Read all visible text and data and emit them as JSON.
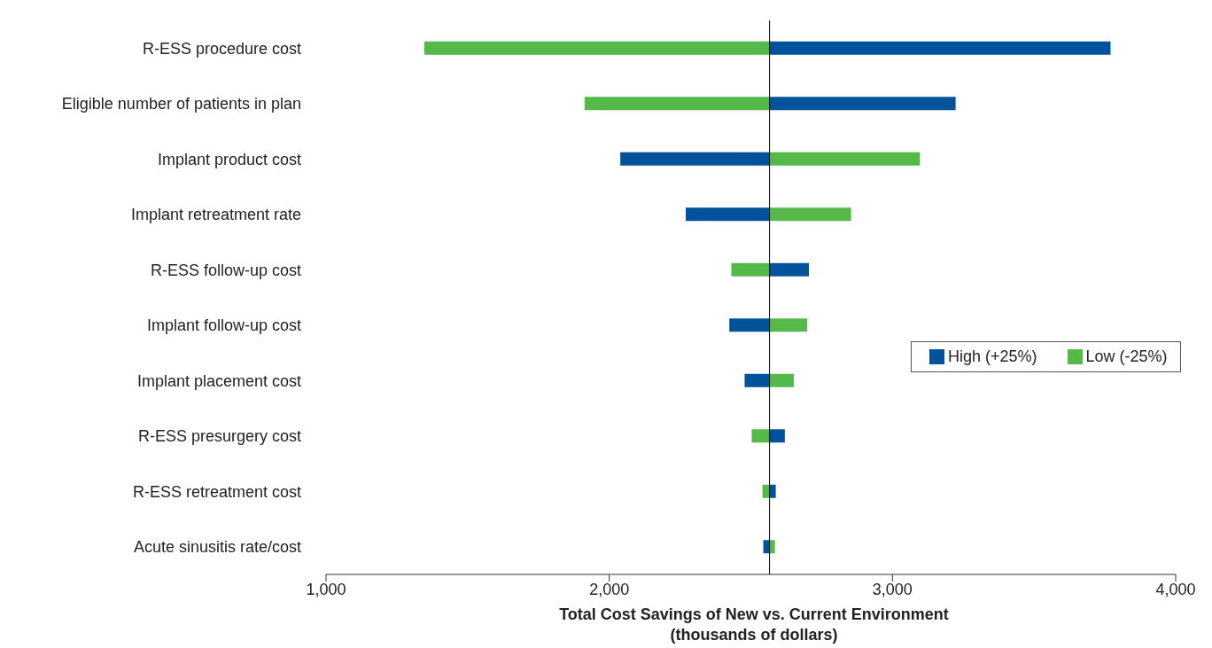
{
  "chart_data": {
    "type": "bar",
    "orientation": "horizontal",
    "xlabel": "Total Cost Savings of New vs. Current Environment\n(thousands of dollars)",
    "categories": [
      "R-ESS procedure cost",
      "Eligible number of patients in plan",
      "Implant product cost",
      "Implant retreatment rate",
      "R-ESS follow-up cost",
      "Implant follow-up cost",
      "Implant placement cost",
      "R-ESS presurgery cost",
      "R-ESS retreatment cost",
      "Acute sinusitis rate/cost"
    ],
    "series": [
      {
        "name": "High (+25%)",
        "color": "#00529b",
        "base": [
          2566,
          2566,
          2039,
          2270,
          2566,
          2424,
          2478,
          2566,
          2566,
          2544
        ],
        "values": [
          1204,
          657,
          527,
          296,
          139,
          142,
          88,
          54,
          22,
          22
        ]
      },
      {
        "name": "Low (-25%)",
        "color": "#55b94a",
        "base": [
          1347,
          1913,
          2566,
          2566,
          2431,
          2566,
          2566,
          2503,
          2541,
          2566
        ],
        "values": [
          1219,
          653,
          531,
          288,
          135,
          133,
          86,
          63,
          25,
          19
        ]
      }
    ],
    "xlim": [
      1000,
      4000
    ],
    "xticks": [
      {
        "value": 1000,
        "label": "1,000"
      },
      {
        "value": 2000,
        "label": "2,000"
      },
      {
        "value": 3000,
        "label": "3,000"
      },
      {
        "value": 4000,
        "label": "4,000"
      }
    ],
    "ref_lines": [
      {
        "axis": "x",
        "value": 2566,
        "color": "#000000"
      }
    ],
    "grid": false,
    "legend": "right"
  }
}
